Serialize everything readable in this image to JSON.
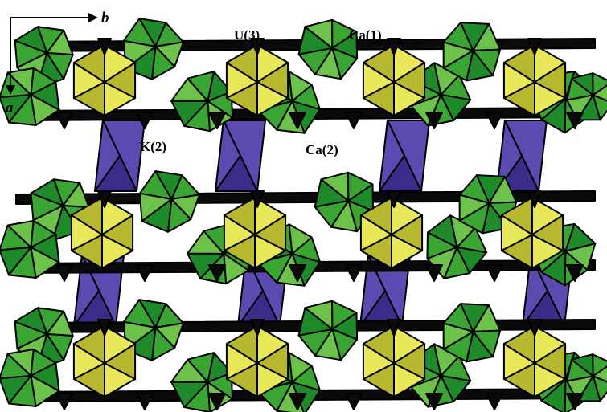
{
  "axes": {
    "horizontal": "b",
    "vertical": "a"
  },
  "labels": {
    "u3": "U(3)",
    "ca1": "Ca(1)",
    "k2": "K(2)",
    "ca2": "Ca(2)"
  },
  "colors": {
    "green_dark": "#1f8a2a",
    "green_mid": "#3aa532",
    "green_light": "#6cc24a",
    "green_teal": "#2fa66a",
    "yellow": "#e8e85a",
    "yellow_dark": "#b8b830",
    "purple": "#5b4bb0",
    "purple_dark": "#3a2d8a",
    "black": "#0a0a0a",
    "edge": "#000000"
  }
}
